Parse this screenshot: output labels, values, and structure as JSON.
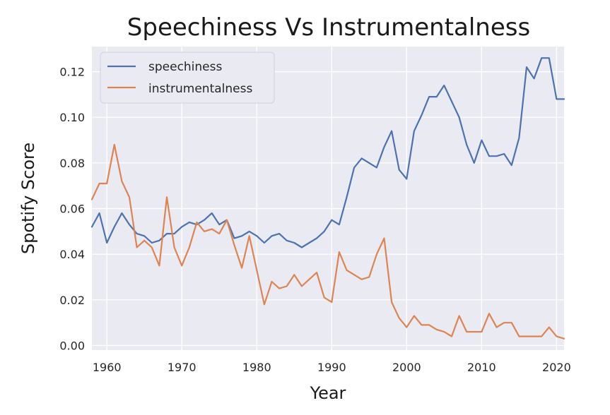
{
  "chart_data": {
    "type": "line",
    "title": "Speechiness Vs Instrumentalness",
    "xlabel": "Year",
    "ylabel": "Spotify Score",
    "xlim": [
      1958,
      2021
    ],
    "ylim": [
      -0.002,
      0.131
    ],
    "x_ticks": [
      1960,
      1970,
      1980,
      1990,
      2000,
      2010,
      2020
    ],
    "x_tick_labels": [
      "1960",
      "1970",
      "1980",
      "1990",
      "2000",
      "2010",
      "2020"
    ],
    "y_ticks": [
      0.0,
      0.02,
      0.04,
      0.06,
      0.08,
      0.1,
      0.12
    ],
    "y_tick_labels": [
      "0.00",
      "0.02",
      "0.04",
      "0.06",
      "0.08",
      "0.10",
      "0.12"
    ],
    "grid": true,
    "legend_position": "top-left",
    "background_color": "#eaeaf2",
    "grid_color": "#ffffff",
    "x": [
      1958,
      1959,
      1960,
      1961,
      1962,
      1963,
      1964,
      1965,
      1966,
      1967,
      1968,
      1969,
      1970,
      1971,
      1972,
      1973,
      1974,
      1975,
      1976,
      1977,
      1978,
      1979,
      1980,
      1981,
      1982,
      1983,
      1984,
      1985,
      1986,
      1987,
      1988,
      1989,
      1990,
      1991,
      1992,
      1993,
      1994,
      1995,
      1996,
      1997,
      1998,
      1999,
      2000,
      2001,
      2002,
      2003,
      2004,
      2005,
      2006,
      2007,
      2008,
      2009,
      2010,
      2011,
      2012,
      2013,
      2014,
      2015,
      2016,
      2017,
      2018,
      2019,
      2020,
      2021
    ],
    "series": [
      {
        "name": "speechiness",
        "color": "#4c72b0",
        "values": [
          0.052,
          0.058,
          0.045,
          0.052,
          0.058,
          0.053,
          0.049,
          0.048,
          0.045,
          0.046,
          0.049,
          0.049,
          0.052,
          0.054,
          0.053,
          0.055,
          0.058,
          0.053,
          0.055,
          0.047,
          0.048,
          0.05,
          0.048,
          0.045,
          0.048,
          0.049,
          0.046,
          0.045,
          0.043,
          0.045,
          0.047,
          0.05,
          0.055,
          0.053,
          0.065,
          0.078,
          0.082,
          0.08,
          0.078,
          0.087,
          0.094,
          0.077,
          0.073,
          0.094,
          0.101,
          0.109,
          0.109,
          0.114,
          0.107,
          0.1,
          0.088,
          0.08,
          0.09,
          0.083,
          0.083,
          0.084,
          0.079,
          0.091,
          0.122,
          0.117,
          0.126,
          0.126,
          0.108,
          0.108
        ]
      },
      {
        "name": "instrumentalness",
        "color": "#dd8452",
        "values": [
          0.064,
          0.071,
          0.071,
          0.088,
          0.072,
          0.065,
          0.043,
          0.046,
          0.043,
          0.035,
          0.065,
          0.043,
          0.035,
          0.043,
          0.054,
          0.05,
          0.051,
          0.049,
          0.055,
          0.044,
          0.034,
          0.048,
          0.033,
          0.018,
          0.028,
          0.025,
          0.026,
          0.031,
          0.026,
          0.029,
          0.032,
          0.021,
          0.019,
          0.041,
          0.033,
          0.031,
          0.029,
          0.03,
          0.04,
          0.047,
          0.019,
          0.012,
          0.008,
          0.013,
          0.009,
          0.009,
          0.007,
          0.006,
          0.004,
          0.013,
          0.006,
          0.006,
          0.006,
          0.014,
          0.008,
          0.01,
          0.01,
          0.004,
          0.004,
          0.004,
          0.004,
          0.008,
          0.004,
          0.003
        ]
      }
    ]
  }
}
